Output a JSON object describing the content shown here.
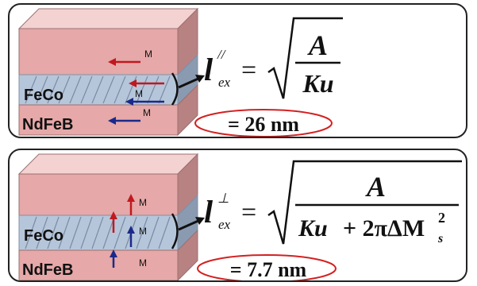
{
  "panels": [
    {
      "id": "parallel",
      "layers": {
        "top_label": "",
        "middle_label": "FeCo",
        "bottom_label": "NdFeB"
      },
      "magnetization_label": "M",
      "orientation": "in-plane",
      "arrow_colors": {
        "top": "#c0191f",
        "middle_upper": "#c0191f",
        "middle_lower": "#1a2a8a",
        "bottom": "#1a2a8a"
      },
      "formula": {
        "symbol": "l",
        "superscript": "//",
        "subscript": "ex",
        "numerator": "A",
        "denominator": "Ku"
      },
      "result": "= 26 nm"
    },
    {
      "id": "perpendicular",
      "layers": {
        "top_label": "",
        "middle_label": "FeCo",
        "bottom_label": "NdFeB"
      },
      "magnetization_label": "M",
      "orientation": "out-of-plane",
      "arrow_colors": {
        "top": "#c0191f",
        "middle_upper": "#c0191f",
        "middle_lower": "#1a2a8a",
        "bottom": "#1a2a8a"
      },
      "formula": {
        "symbol": "l",
        "superscript": "⊥",
        "subscript": "ex",
        "numerator": "A",
        "denominator_part1": "Ku",
        "denominator_part2": "+ 2πΔM",
        "denominator_sup": "2",
        "denominator_sub": "s"
      },
      "result": "= 7.7 nm"
    }
  ],
  "colors": {
    "pink_face": "#e6a8a8",
    "pink_top": "#f4d2d2",
    "pink_side": "#b98282",
    "blue_face": "#b6c6da",
    "blue_side": "#8a9ab0",
    "ellipse": "#d32020"
  }
}
